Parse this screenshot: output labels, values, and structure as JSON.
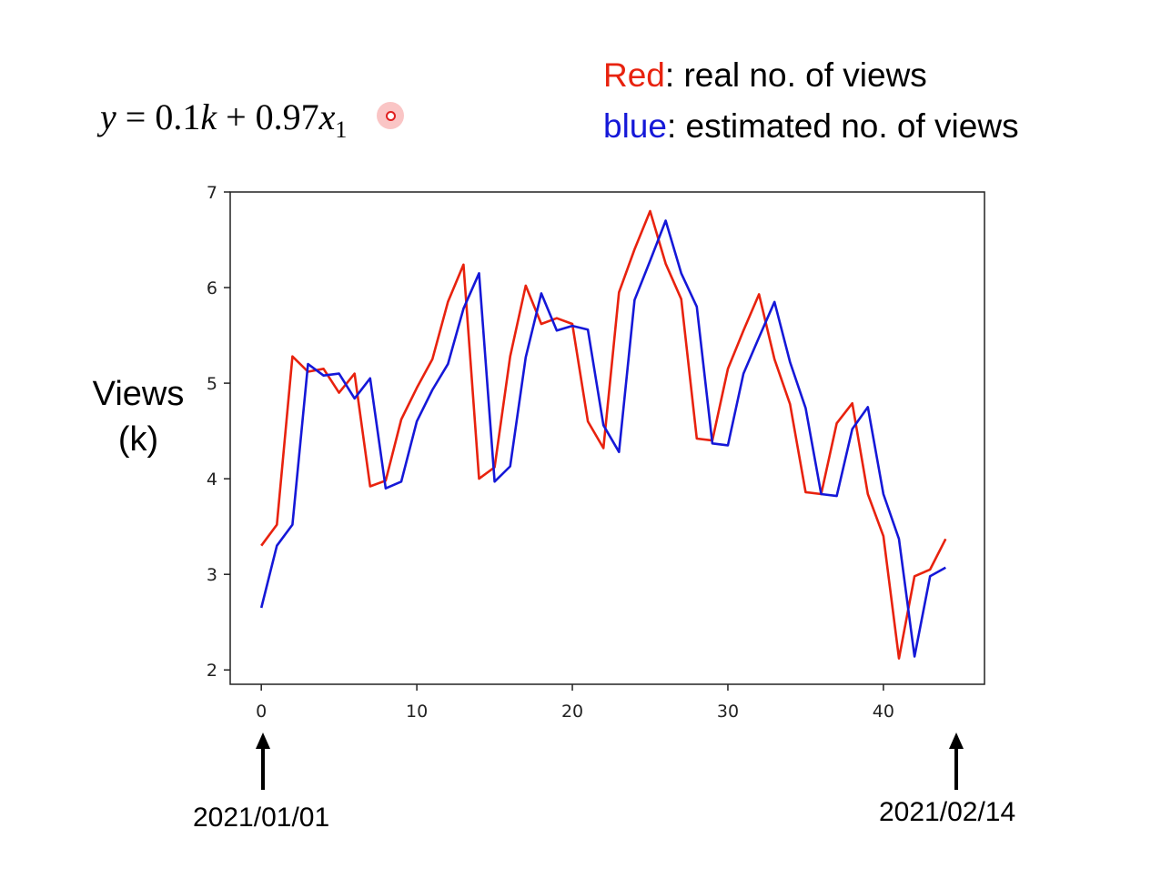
{
  "equation": {
    "y": "y",
    "eq": " = 0.1",
    "k": "k",
    "plus": " + 0.97",
    "x": "x",
    "sub": "1"
  },
  "legend": {
    "red_word": "Red",
    "red_rest": ": real no. of views",
    "blue_word": "blue",
    "blue_rest": ":  estimated no. of views",
    "red_color": "#e8220e",
    "blue_color": "#1518d8"
  },
  "ylabel": {
    "line1": "Views",
    "line2": "(k)"
  },
  "annotations": {
    "start_date": "2021/01/01",
    "end_date": "2021/02/14"
  },
  "chart_data": {
    "type": "line",
    "title": "",
    "xlabel": "",
    "ylabel": "Views (k)",
    "xlim": [
      -2,
      46.5
    ],
    "ylim": [
      1.85,
      7.0
    ],
    "xticks": [
      0,
      10,
      20,
      30,
      40
    ],
    "yticks": [
      2,
      3,
      4,
      5,
      6,
      7
    ],
    "x": [
      0,
      1,
      2,
      3,
      4,
      5,
      6,
      7,
      8,
      9,
      10,
      11,
      12,
      13,
      14,
      15,
      16,
      17,
      18,
      19,
      20,
      21,
      22,
      23,
      24,
      25,
      26,
      27,
      28,
      29,
      30,
      31,
      32,
      33,
      34,
      35,
      36,
      37,
      38,
      39,
      40,
      41,
      42,
      43,
      44
    ],
    "series": [
      {
        "name": "Red: real no. of views",
        "color": "#e8220e",
        "values": [
          3.3,
          3.52,
          5.28,
          5.12,
          5.15,
          4.9,
          5.1,
          3.92,
          3.98,
          4.62,
          4.95,
          5.25,
          5.85,
          6.24,
          4.0,
          4.12,
          5.28,
          6.02,
          5.62,
          5.68,
          5.62,
          4.6,
          4.32,
          5.95,
          6.4,
          6.8,
          6.25,
          5.88,
          4.42,
          4.4,
          5.15,
          5.55,
          5.93,
          5.25,
          4.78,
          3.86,
          3.84,
          4.58,
          4.79,
          3.84,
          3.4,
          2.12,
          2.98,
          3.05,
          3.37
        ]
      },
      {
        "name": "blue: estimated no. of views",
        "color": "#1518d8",
        "values": [
          2.65,
          3.3,
          3.52,
          5.2,
          5.08,
          5.1,
          4.84,
          5.05,
          3.9,
          3.97,
          4.6,
          4.93,
          5.2,
          5.78,
          6.15,
          3.97,
          4.13,
          5.27,
          5.94,
          5.55,
          5.6,
          5.56,
          4.56,
          4.28,
          5.87,
          6.28,
          6.7,
          6.15,
          5.8,
          4.37,
          4.35,
          5.1,
          5.48,
          5.85,
          5.22,
          4.74,
          3.84,
          3.82,
          4.52,
          4.75,
          3.84,
          3.37,
          2.14,
          2.98,
          3.07
        ]
      }
    ]
  }
}
